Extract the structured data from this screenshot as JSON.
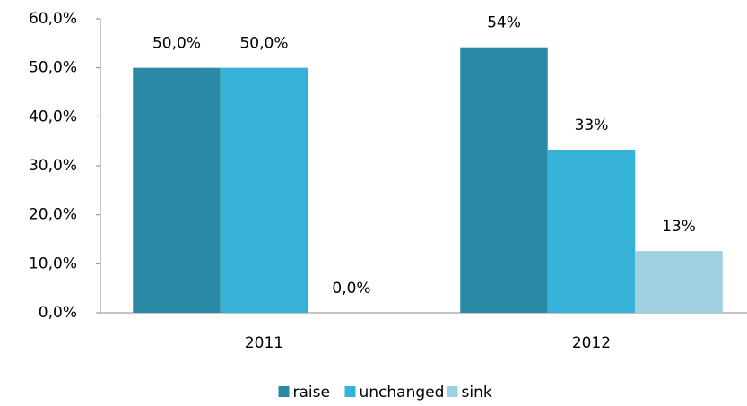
{
  "chart_data": {
    "type": "bar",
    "categories": [
      "2011",
      "2012"
    ],
    "series": [
      {
        "name": "raise",
        "color": "#2a8aa6",
        "values": [
          50,
          54.2
        ],
        "value_labels": [
          "50,0%",
          "54%"
        ]
      },
      {
        "name": "unchanged",
        "color": "#36b2d8",
        "values": [
          50,
          33.3
        ],
        "value_labels": [
          "50,0%",
          "33%"
        ]
      },
      {
        "name": "sink",
        "color": "#9fd0e2",
        "values": [
          0,
          12.6
        ],
        "value_labels": [
          "0,0%",
          "13%"
        ]
      }
    ],
    "ylim": [
      0,
      60
    ],
    "yticks": [
      {
        "value": 0,
        "label": "0,0%"
      },
      {
        "value": 10,
        "label": "10,0%"
      },
      {
        "value": 20,
        "label": "20,0%"
      },
      {
        "value": 30,
        "label": "30,0%"
      },
      {
        "value": 40,
        "label": "40,0%"
      },
      {
        "value": 50,
        "label": "50,0%"
      },
      {
        "value": 60,
        "label": "60,0%"
      }
    ],
    "grid": false,
    "legend": "bottom"
  }
}
